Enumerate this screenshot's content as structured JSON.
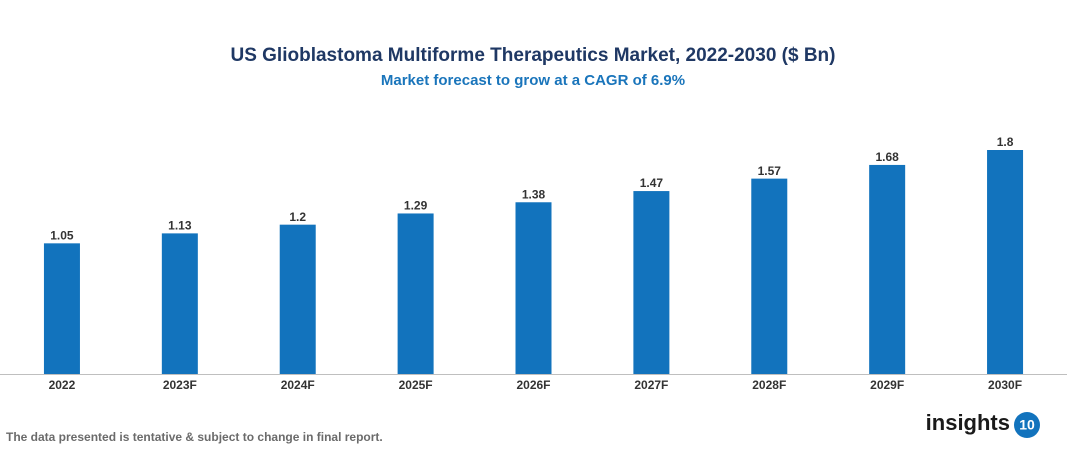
{
  "chart_data": {
    "type": "bar",
    "title": "US Glioblastoma Multiforme Therapeutics Market, 2022-2030 ($ Bn)",
    "subtitle": "Market forecast to grow at a CAGR of 6.9%",
    "categories": [
      "2022",
      "2023F",
      "2024F",
      "2025F",
      "2026F",
      "2027F",
      "2028F",
      "2029F",
      "2030F"
    ],
    "values": [
      1.05,
      1.13,
      1.2,
      1.29,
      1.38,
      1.47,
      1.57,
      1.68,
      1.8
    ],
    "color": "#1273bd",
    "note": "The data presented is tentative & subject to change in final report.",
    "logo_text": "insights",
    "logo_number": "10"
  }
}
